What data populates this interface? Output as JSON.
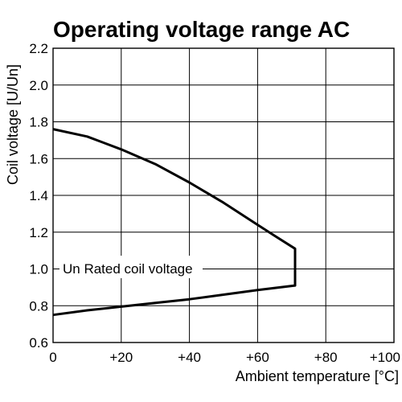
{
  "chart_data": {
    "type": "line",
    "title": "Operating voltage range AC",
    "xlabel": "Ambient temperature [°C]",
    "ylabel": "Coil voltage [U/Un]",
    "xlim": [
      0,
      100
    ],
    "ylim": [
      0.6,
      2.2
    ],
    "x_ticks": [
      0,
      20,
      40,
      60,
      80,
      100
    ],
    "x_tick_labels": [
      "0",
      "+20",
      "+40",
      "+60",
      "+80",
      "+100"
    ],
    "y_ticks": [
      0.6,
      0.8,
      1.0,
      1.2,
      1.4,
      1.6,
      1.8,
      2.0,
      2.2
    ],
    "y_tick_labels": [
      "0.6",
      "0.8",
      "1.0",
      "1.2",
      "1.4",
      "1.6",
      "1.8",
      "2.0",
      "2.2"
    ],
    "grid": true,
    "annotation": "Un Rated coil voltage",
    "series": [
      {
        "x": [
          0,
          10,
          20,
          30,
          40,
          50,
          60,
          65,
          71,
          71,
          71,
          60,
          50,
          40,
          30,
          20,
          10,
          0
        ],
        "y": [
          1.76,
          1.72,
          1.65,
          1.57,
          1.47,
          1.36,
          1.24,
          1.18,
          1.11,
          1.0,
          0.91,
          0.885,
          0.86,
          0.835,
          0.815,
          0.795,
          0.775,
          0.75
        ]
      }
    ],
    "line_color": "#000000",
    "grid_color": "#000000"
  }
}
